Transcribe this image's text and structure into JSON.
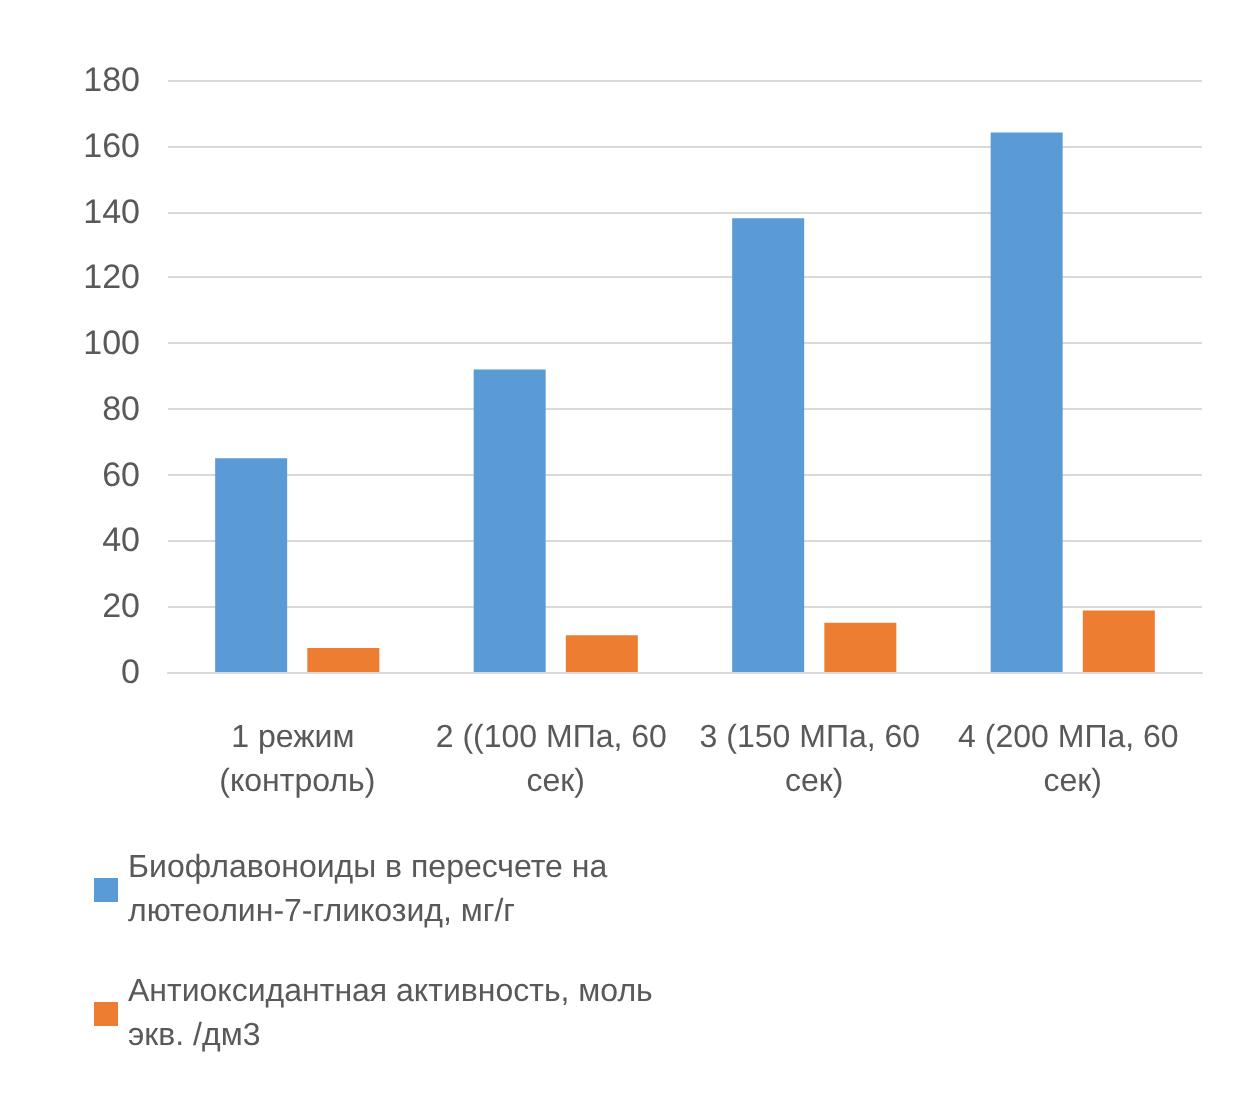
{
  "chart_data": {
    "type": "bar",
    "categories": [
      "1 режим (контроль)",
      "2 ((100 МПа, 60 сек)",
      "3 (150 МПа, 60 сек)",
      "4 (200 МПа, 60 сек)"
    ],
    "series": [
      {
        "name": "Биофлавоноиды в пересчете на лютеолин-7-гликозид, мг/г",
        "color": "#5b9bd5",
        "values": [
          65,
          92,
          138,
          164
        ]
      },
      {
        "name": "Антиоксидантная активность, моль экв. /дм3",
        "color": "#ed7d31",
        "values": [
          7.3,
          11.2,
          15,
          18.7
        ]
      }
    ],
    "ylim": [
      0,
      180
    ],
    "yticks": [
      0,
      20,
      40,
      60,
      80,
      100,
      120,
      140,
      160,
      180
    ],
    "grid": "y",
    "legend": "bottom"
  }
}
